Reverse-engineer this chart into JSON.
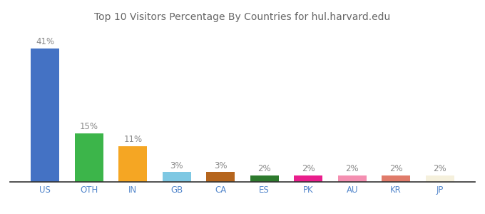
{
  "categories": [
    "US",
    "OTH",
    "IN",
    "GB",
    "CA",
    "ES",
    "PK",
    "AU",
    "KR",
    "JP"
  ],
  "values": [
    41,
    15,
    11,
    3,
    3,
    2,
    2,
    2,
    2,
    2
  ],
  "bar_colors": [
    "#4472c4",
    "#3cb54a",
    "#f5a623",
    "#7ec8e3",
    "#b5651d",
    "#2d7a2d",
    "#e91e8c",
    "#f48fb1",
    "#e07b6a",
    "#f5f0dc"
  ],
  "title": "Top 10 Visitors Percentage By Countries for hul.harvard.edu",
  "title_fontsize": 10,
  "label_fontsize": 8.5,
  "tick_fontsize": 8.5,
  "ylim": [
    0,
    48
  ],
  "background_color": "#ffffff",
  "label_color": "#888888",
  "tick_color": "#5588cc"
}
